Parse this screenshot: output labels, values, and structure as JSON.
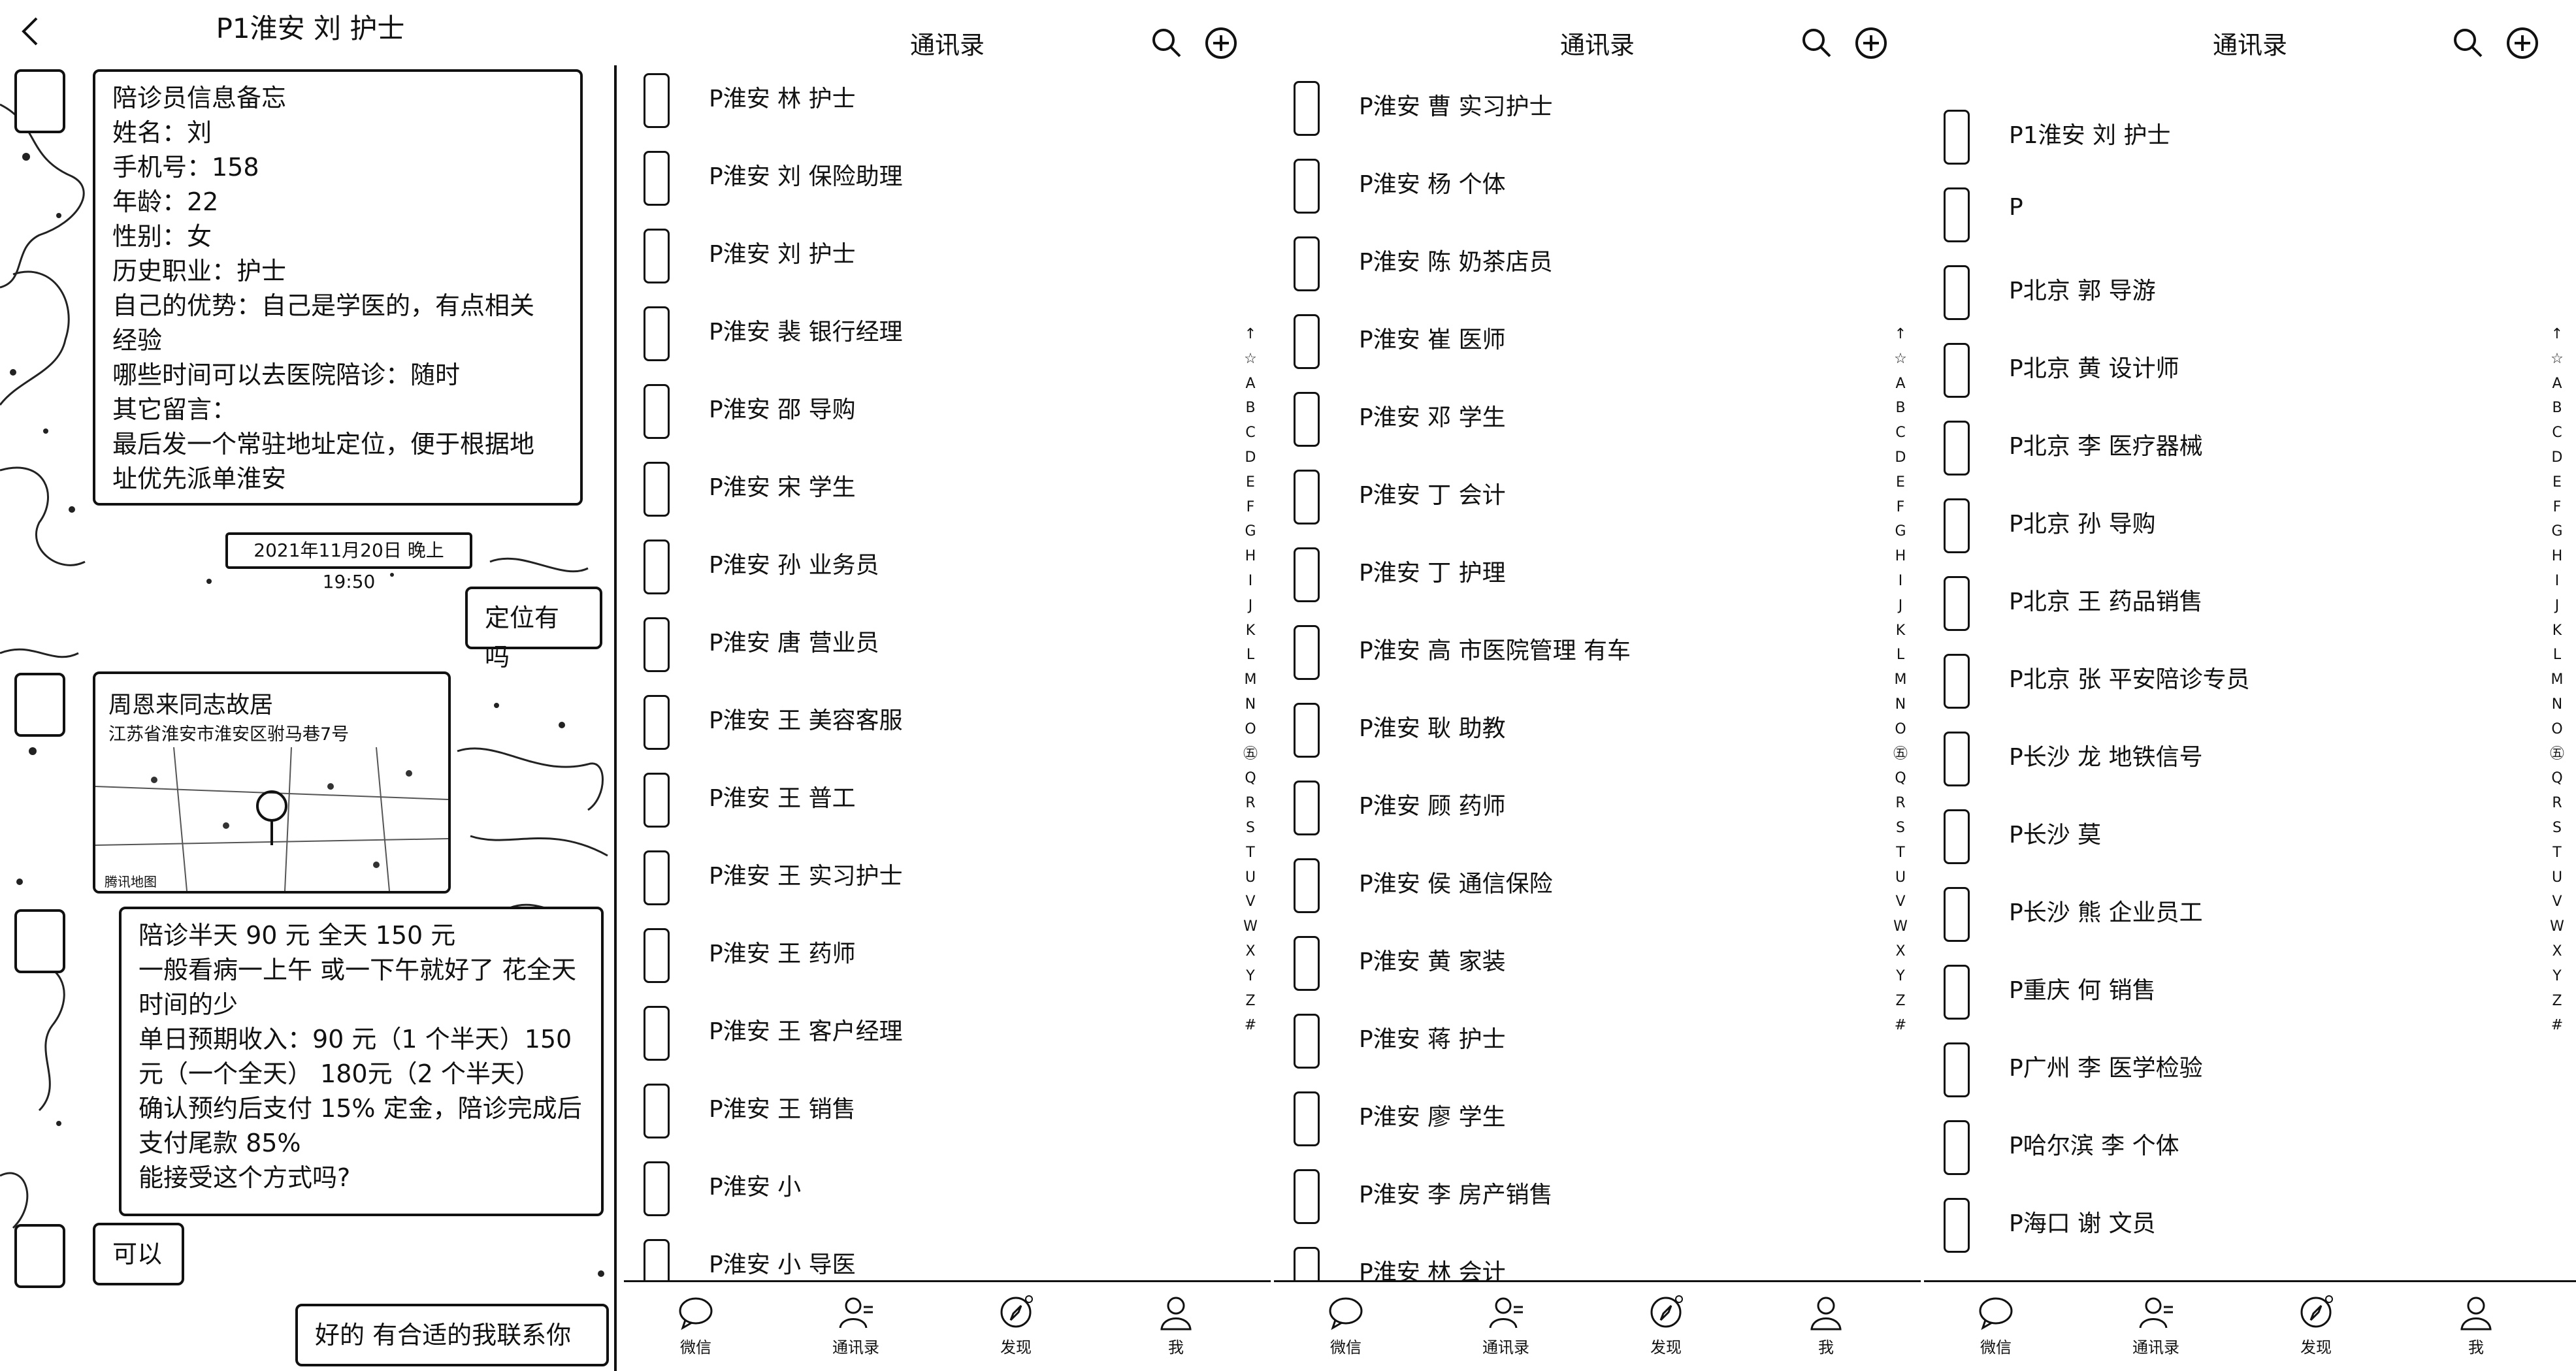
{
  "chat": {
    "title": "P1淮安 刘    护士",
    "memo_lines": [
      "陪诊员信息备忘",
      "姓名：刘",
      "手机号：158",
      "年龄：22",
      "性别：女",
      "历史职业：护士",
      "自己的优势：自己是学医的，有点相关",
      "经验",
      "哪些时间可以去医院陪诊：随时",
      "其它留言：",
      "最后发一个常驻地址定位，便于根据地",
      "址优先派单淮安"
    ],
    "timestamp": "2021年11月20日 晚上19:50",
    "location_question": "定位有吗",
    "location": {
      "name": "周恩来同志故居",
      "address": "江苏省淮安市淮安区驸马巷7号",
      "map_brand": "腾讯地图"
    },
    "price_lines": [
      "陪诊半天 90 元 全天 150 元",
      "一般看病一上午 或一下午就好了 花全天",
      "时间的少",
      "单日预期收入：90 元（1 个半天）150",
      "元（一个全天） 180元（2 个半天）",
      "确认预约后支付 15% 定金，陪诊完成后",
      "支付尾款 85%",
      "能接受这个方式吗?"
    ],
    "reply_ok": "可以",
    "reply_final": "好的 有合适的我联系你"
  },
  "contacts_title": "通讯录",
  "alpha_index": [
    "↑",
    "☆",
    "A",
    "B",
    "C",
    "D",
    "E",
    "F",
    "G",
    "H",
    "I",
    "J",
    "K",
    "L",
    "M",
    "N",
    "O",
    "㊄",
    "Q",
    "R",
    "S",
    "T",
    "U",
    "V",
    "W",
    "X",
    "Y",
    "Z",
    "#"
  ],
  "tabs": [
    "微信",
    "通讯录",
    "发现",
    "我"
  ],
  "list1": [
    "P淮安 林    护士",
    "P淮安 刘    保险助理",
    "P淮安 刘    护士",
    "P淮安 裴    银行经理",
    "P淮安 邵    导购",
    "P淮安 宋    学生",
    "P淮安 孙    业务员",
    "P淮安 唐    营业员",
    "P淮安 王    美容客服",
    "P淮安 王    普工",
    "P淮安 王    实习护士",
    "P淮安 王    药师",
    "P淮安 王    客户经理",
    "P淮安 王    销售",
    "P淮安 小",
    "P淮安 小    导医"
  ],
  "list2": [
    "P淮安 曹    实习护士",
    "P淮安 杨    个体",
    "P淮安 陈    奶茶店员",
    "P淮安 崔    医师",
    "P淮安 邓    学生",
    "P淮安 丁    会计",
    "P淮安 丁    护理",
    "P淮安 高    市医院管理 有车",
    "P淮安 耿    助教",
    "P淮安 顾    药师",
    "P淮安 侯    通信保险",
    "P淮安 黄    家装",
    "P淮安 蒋    护士",
    "P淮安 廖    学生",
    "P淮安 李    房产销售",
    "P淮安 林    会计"
  ],
  "list3": [
    "P1淮安 刘    护士",
    "P",
    "P北京 郭    导游",
    "P北京 黄    设计师",
    "P北京 李    医疗器械",
    "P北京 孙    导购",
    "P北京 王    药品销售",
    "P北京 张    平安陪诊专员",
    "P长沙 龙    地铁信号",
    "P长沙 莫",
    "P长沙 熊    企业员工",
    "P重庆 何    销售",
    "P广州 李    医学检验",
    "P哈尔滨 李    个体",
    "P海口 谢    文员"
  ]
}
